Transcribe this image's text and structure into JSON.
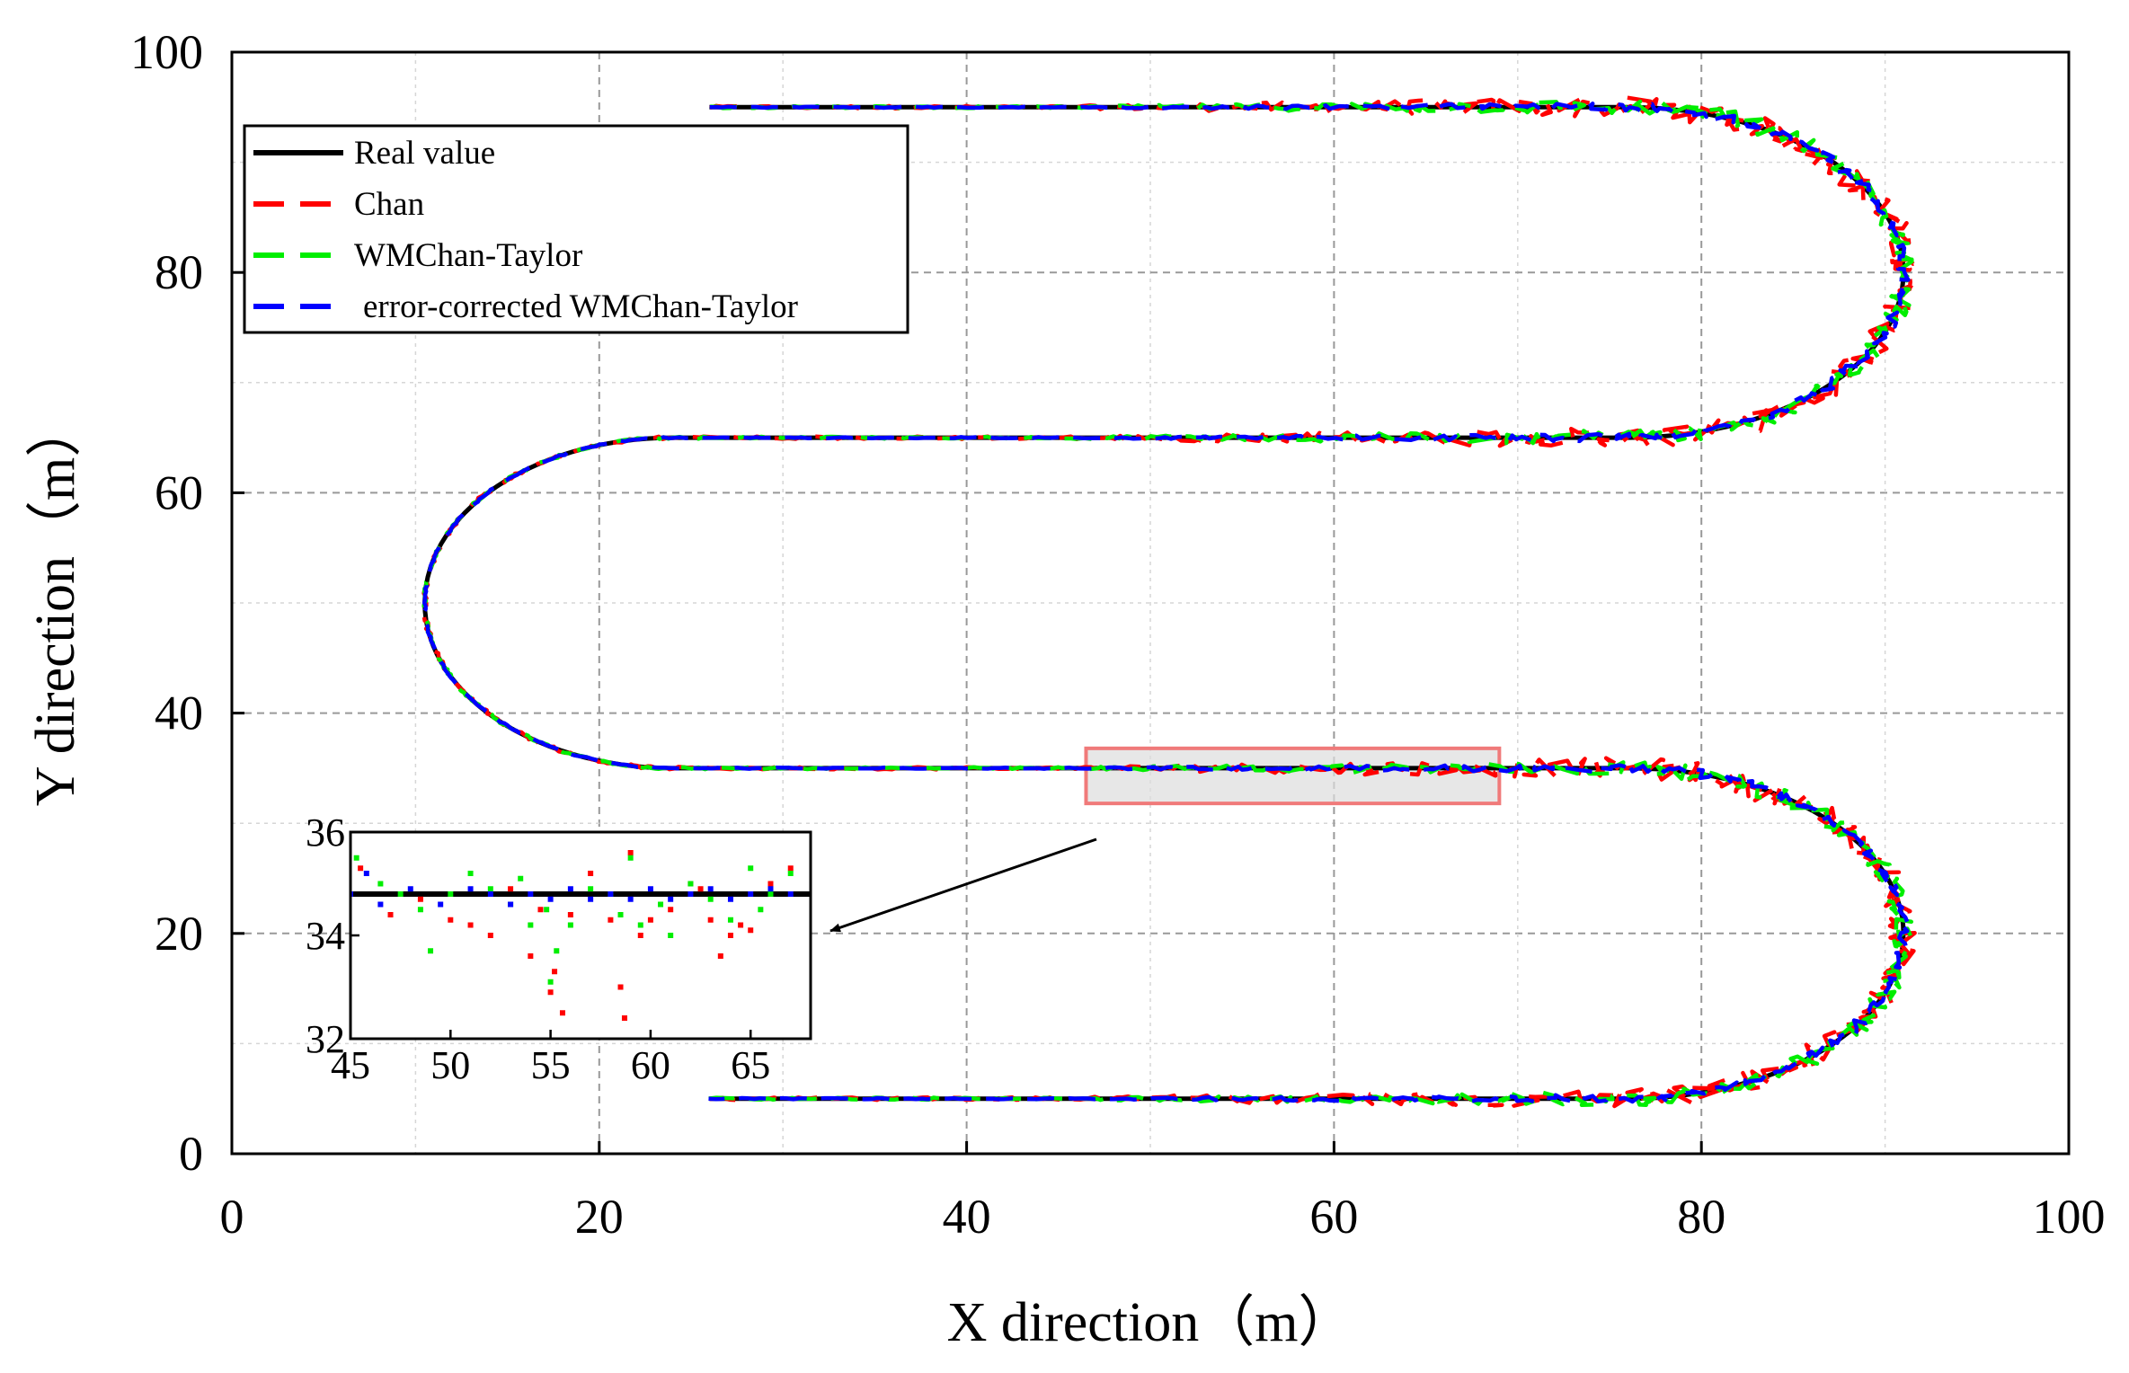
{
  "chart_data": {
    "type": "line",
    "title": "",
    "xlabel": "X direction（m）",
    "ylabel": "Y direction（m）",
    "xlim": [
      0,
      100
    ],
    "ylim": [
      0,
      100
    ],
    "xticks": [
      "0",
      "20",
      "40",
      "60",
      "80",
      "100"
    ],
    "yticks": [
      "0",
      "20",
      "40",
      "60",
      "80",
      "100"
    ],
    "grid": true,
    "legend_position": "top-left",
    "track": {
      "straights": [
        {
          "y": 95,
          "x_from": 26,
          "x_to": 76
        },
        {
          "y": 65,
          "x_from": 24,
          "x_to": 76
        },
        {
          "y": 35,
          "x_from": 24,
          "x_to": 76
        },
        {
          "y": 5,
          "x_from": 26,
          "x_to": 76
        }
      ],
      "right_turns": [
        {
          "center_y": 80,
          "radius": 15
        },
        {
          "center_y": 20,
          "radius": 15
        }
      ],
      "left_turn": {
        "center_y": 50,
        "radius": 15,
        "leftmost_x": 10.5
      }
    },
    "series": [
      {
        "name": "Real value",
        "color": "#000000",
        "style": "solid"
      },
      {
        "name": "Chan",
        "color": "#ff0000",
        "style": "dashed"
      },
      {
        "name": "WMChan-Taylor",
        "color": "#00ee00",
        "style": "dashed"
      },
      {
        "name": "error-corrected WMChan-Taylor",
        "color": "#0000ff",
        "style": "dashed"
      }
    ],
    "zoom_region": {
      "x": [
        46.5,
        69
      ],
      "y": [
        31.8,
        36.8
      ]
    },
    "inset": {
      "xlim": [
        45,
        68
      ],
      "ylim": [
        32,
        36
      ],
      "xticks": [
        "45",
        "50",
        "55",
        "60",
        "65"
      ],
      "yticks": [
        "32",
        "34",
        "36"
      ],
      "real_value_y": 34.8,
      "points": {
        "red": [
          [
            45.5,
            35.3
          ],
          [
            47,
            34.4
          ],
          [
            48.5,
            34.7
          ],
          [
            50,
            34.3
          ],
          [
            51,
            34.2
          ],
          [
            52,
            34.0
          ],
          [
            53,
            34.9
          ],
          [
            54,
            33.6
          ],
          [
            54.5,
            34.5
          ],
          [
            55,
            32.9
          ],
          [
            55.2,
            33.3
          ],
          [
            55.6,
            32.5
          ],
          [
            56,
            34.4
          ],
          [
            57,
            35.2
          ],
          [
            58,
            34.3
          ],
          [
            58.5,
            33.0
          ],
          [
            58.7,
            32.4
          ],
          [
            59,
            35.6
          ],
          [
            59.5,
            34.0
          ],
          [
            60,
            34.3
          ],
          [
            61,
            34.5
          ],
          [
            62,
            35.0
          ],
          [
            62.5,
            34.9
          ],
          [
            63,
            34.3
          ],
          [
            63.5,
            33.6
          ],
          [
            64,
            34.0
          ],
          [
            64.5,
            34.2
          ],
          [
            65,
            34.1
          ],
          [
            66,
            35.0
          ],
          [
            67,
            35.3
          ]
        ],
        "green": [
          [
            45.3,
            35.5
          ],
          [
            46.5,
            35.0
          ],
          [
            47.5,
            34.8
          ],
          [
            48.5,
            34.5
          ],
          [
            49,
            33.7
          ],
          [
            50,
            34.8
          ],
          [
            51,
            35.2
          ],
          [
            52,
            34.9
          ],
          [
            53,
            34.6
          ],
          [
            53.5,
            35.1
          ],
          [
            54,
            34.2
          ],
          [
            54.8,
            34.5
          ],
          [
            55,
            33.1
          ],
          [
            55.3,
            33.7
          ],
          [
            56,
            34.2
          ],
          [
            57,
            34.9
          ],
          [
            58,
            34.8
          ],
          [
            58.5,
            34.4
          ],
          [
            59,
            35.5
          ],
          [
            59.5,
            34.2
          ],
          [
            60.5,
            34.6
          ],
          [
            61,
            34.0
          ],
          [
            62,
            35.0
          ],
          [
            63,
            34.7
          ],
          [
            64,
            34.3
          ],
          [
            65,
            35.3
          ],
          [
            65.5,
            34.5
          ],
          [
            66,
            34.8
          ],
          [
            67,
            35.2
          ]
        ],
        "blue": [
          [
            45,
            34.8
          ],
          [
            45.8,
            35.2
          ],
          [
            46.5,
            34.6
          ],
          [
            48,
            34.9
          ],
          [
            49.5,
            34.6
          ],
          [
            51,
            34.9
          ],
          [
            52,
            34.8
          ],
          [
            53,
            34.6
          ],
          [
            54,
            34.8
          ],
          [
            55,
            34.7
          ],
          [
            56,
            34.9
          ],
          [
            57,
            34.7
          ],
          [
            58,
            34.8
          ],
          [
            59,
            34.7
          ],
          [
            60,
            34.9
          ],
          [
            61,
            34.7
          ],
          [
            62,
            34.8
          ],
          [
            63,
            34.9
          ],
          [
            64,
            34.7
          ],
          [
            65,
            34.8
          ],
          [
            66,
            34.9
          ],
          [
            67,
            34.8
          ]
        ]
      }
    }
  }
}
